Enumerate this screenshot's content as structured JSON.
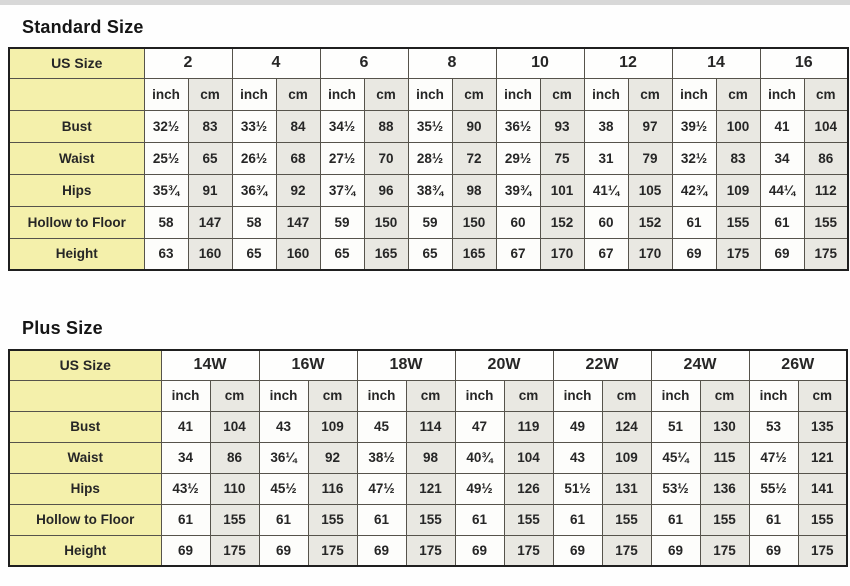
{
  "colors": {
    "page_bg": "#fefefe",
    "top_strip": "#d8d8d8",
    "label_yellow": "#f4f0ab",
    "cm_column_gray": "#e9e8e2",
    "border_inner": "#56534b",
    "border_outer": "#1f1f1f"
  },
  "standard": {
    "title": "Standard Size",
    "corner_label": "US Size",
    "unit_labels": [
      "inch",
      "cm"
    ],
    "sizes": [
      "2",
      "4",
      "6",
      "8",
      "10",
      "12",
      "14",
      "16"
    ],
    "rows": [
      {
        "label": "Bust",
        "cells": [
          "32½",
          "83",
          "33½",
          "84",
          "34½",
          "88",
          "35½",
          "90",
          "36½",
          "93",
          "38",
          "97",
          "39½",
          "100",
          "41",
          "104"
        ]
      },
      {
        "label": "Waist",
        "cells": [
          "25½",
          "65",
          "26½",
          "68",
          "27½",
          "70",
          "28½",
          "72",
          "29½",
          "75",
          "31",
          "79",
          "32½",
          "83",
          "34",
          "86"
        ]
      },
      {
        "label": "Hips",
        "cells": [
          "35¾",
          "91",
          "36¾",
          "92",
          "37¾",
          "96",
          "38¾",
          "98",
          "39¾",
          "101",
          "41¼",
          "105",
          "42¾",
          "109",
          "44¼",
          "112"
        ]
      },
      {
        "label": "Hollow to Floor",
        "cells": [
          "58",
          "147",
          "58",
          "147",
          "59",
          "150",
          "59",
          "150",
          "60",
          "152",
          "60",
          "152",
          "61",
          "155",
          "61",
          "155"
        ]
      },
      {
        "label": "Height",
        "cells": [
          "63",
          "160",
          "65",
          "160",
          "65",
          "165",
          "65",
          "165",
          "67",
          "170",
          "67",
          "170",
          "69",
          "175",
          "69",
          "175"
        ]
      }
    ],
    "label_col_width": 135
  },
  "plus": {
    "title": "Plus Size",
    "corner_label": "US Size",
    "unit_labels": [
      "inch",
      "cm"
    ],
    "sizes": [
      "14W",
      "16W",
      "18W",
      "20W",
      "22W",
      "24W",
      "26W"
    ],
    "rows": [
      {
        "label": "Bust",
        "cells": [
          "41",
          "104",
          "43",
          "109",
          "45",
          "114",
          "47",
          "119",
          "49",
          "124",
          "51",
          "130",
          "53",
          "135"
        ]
      },
      {
        "label": "Waist",
        "cells": [
          "34",
          "86",
          "36¼",
          "92",
          "38½",
          "98",
          "40¾",
          "104",
          "43",
          "109",
          "45¼",
          "115",
          "47½",
          "121"
        ]
      },
      {
        "label": "Hips",
        "cells": [
          "43½",
          "110",
          "45½",
          "116",
          "47½",
          "121",
          "49½",
          "126",
          "51½",
          "131",
          "53½",
          "136",
          "55½",
          "141"
        ]
      },
      {
        "label": "Hollow to Floor",
        "cells": [
          "61",
          "155",
          "61",
          "155",
          "61",
          "155",
          "61",
          "155",
          "61",
          "155",
          "61",
          "155",
          "61",
          "155"
        ]
      },
      {
        "label": "Height",
        "cells": [
          "69",
          "175",
          "69",
          "175",
          "69",
          "175",
          "69",
          "175",
          "69",
          "175",
          "69",
          "175",
          "69",
          "175"
        ]
      }
    ],
    "label_col_width": 152
  }
}
